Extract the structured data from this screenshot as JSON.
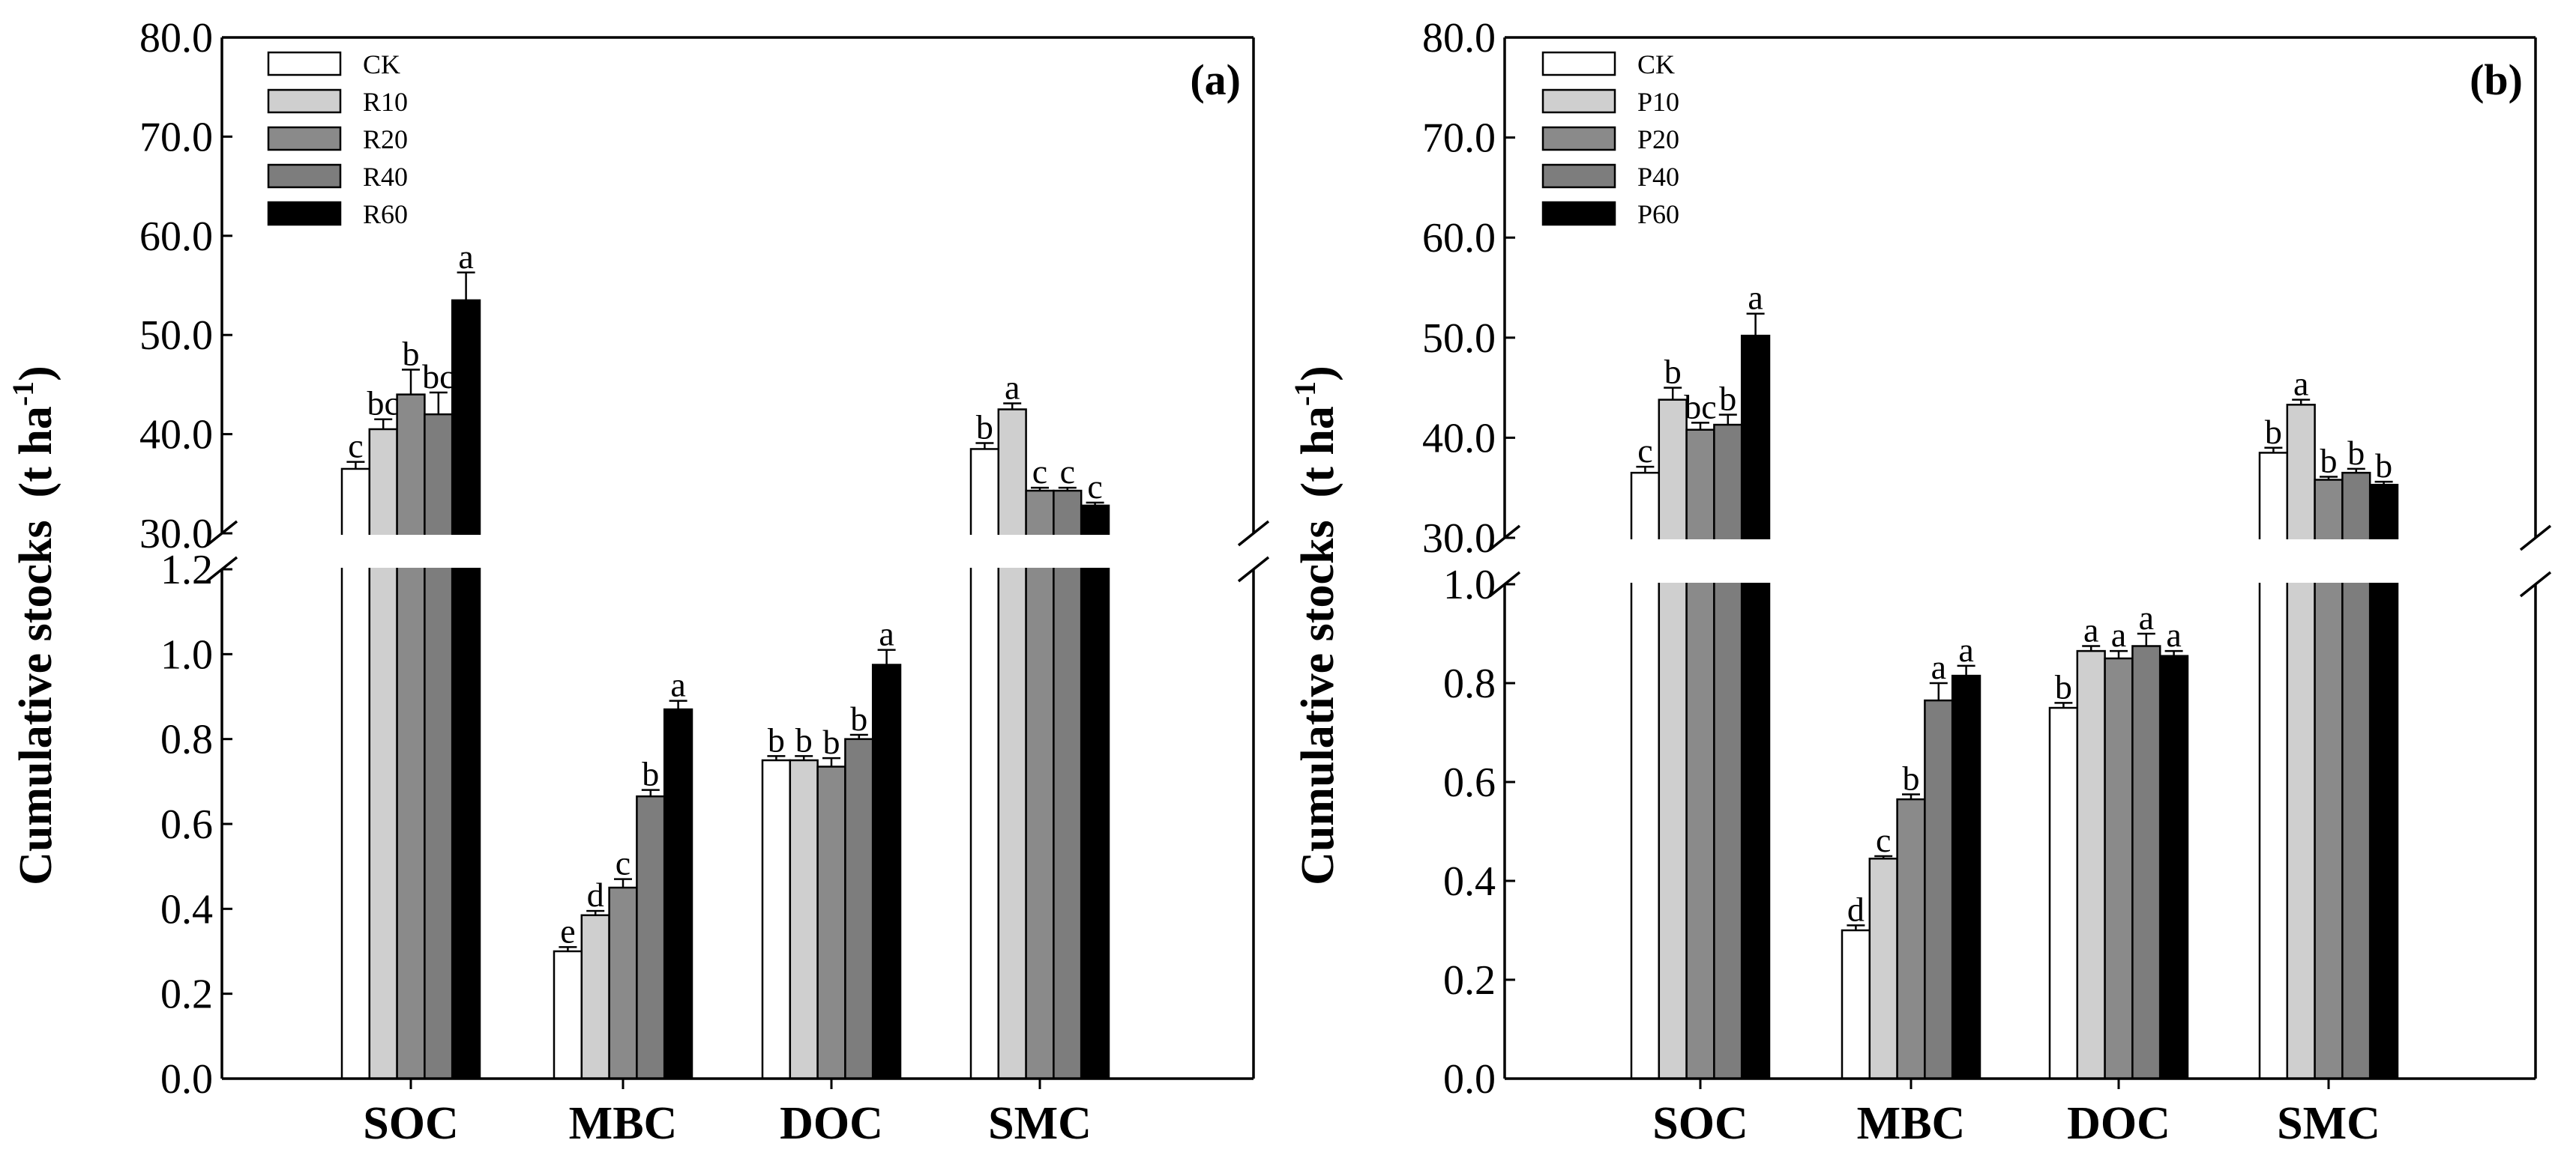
{
  "chart_data": [
    {
      "type": "bar",
      "panel_label": "(a)",
      "ylabel_main": "Cumulative stocks",
      "ylabel_unit_prefix": "(t ha",
      "ylabel_unit_sup": "-1",
      "ylabel_unit_suffix": ")",
      "categories": [
        "SOC",
        "MBC",
        "DOC",
        "SMC"
      ],
      "upper_ylim": [
        30,
        80
      ],
      "upper_ticks": [
        "30.0",
        "40.0",
        "50.0",
        "60.0",
        "70.0",
        "80.0"
      ],
      "lower_ylim": [
        0,
        1.2
      ],
      "lower_ticks": [
        "0.0",
        "0.2",
        "0.4",
        "0.6",
        "0.8",
        "1.0",
        "1.2"
      ],
      "legend_position": "top-left",
      "series": [
        {
          "name": "CK",
          "color": "#ffffff",
          "values": [
            36.5,
            0.3,
            0.75,
            38.5
          ],
          "errors": [
            0.7,
            0.01,
            0.01,
            0.6
          ],
          "letters": [
            "c",
            "e",
            "b",
            "b"
          ]
        },
        {
          "name": "R10",
          "color": "#cfcfcf",
          "values": [
            40.5,
            0.385,
            0.75,
            42.5
          ],
          "errors": [
            1.0,
            0.01,
            0.01,
            0.6
          ],
          "letters": [
            "bc",
            "d",
            "b",
            "a"
          ]
        },
        {
          "name": "R20",
          "color": "#8a8a8a",
          "values": [
            44.0,
            0.45,
            0.735,
            34.3
          ],
          "errors": [
            2.5,
            0.02,
            0.02,
            0.3
          ],
          "letters": [
            "b",
            "c",
            "b",
            "c"
          ]
        },
        {
          "name": "R40",
          "color": "#7d7d7d",
          "values": [
            42.0,
            0.665,
            0.8,
            34.3
          ],
          "errors": [
            2.2,
            0.015,
            0.01,
            0.3
          ],
          "letters": [
            "bc",
            "b",
            "b",
            "c"
          ]
        },
        {
          "name": "R60",
          "color": "#000000",
          "values": [
            53.5,
            0.87,
            0.975,
            32.8
          ],
          "errors": [
            2.8,
            0.02,
            0.035,
            0.3
          ],
          "letters": [
            "a",
            "a",
            "a",
            "c"
          ]
        }
      ]
    },
    {
      "type": "bar",
      "panel_label": "(b)",
      "ylabel_main": "Cumulative stocks",
      "ylabel_unit_prefix": "(t ha",
      "ylabel_unit_sup": "-1",
      "ylabel_unit_suffix": ")",
      "categories": [
        "SOC",
        "MBC",
        "DOC",
        "SMC"
      ],
      "upper_ylim": [
        30,
        80
      ],
      "upper_ticks": [
        "30.0",
        "40.0",
        "50.0",
        "60.0",
        "70.0",
        "80.0"
      ],
      "lower_ylim": [
        0,
        1.0
      ],
      "lower_ticks": [
        "0.0",
        "0.2",
        "0.4",
        "0.6",
        "0.8",
        "1.0"
      ],
      "legend_position": "top-left",
      "series": [
        {
          "name": "CK",
          "color": "#ffffff",
          "values": [
            36.5,
            0.3,
            0.75,
            38.5
          ],
          "errors": [
            0.6,
            0.01,
            0.01,
            0.5
          ],
          "letters": [
            "c",
            "d",
            "b",
            "b"
          ]
        },
        {
          "name": "P10",
          "color": "#cfcfcf",
          "values": [
            43.8,
            0.445,
            0.865,
            43.3
          ],
          "errors": [
            1.2,
            0.005,
            0.01,
            0.5
          ],
          "letters": [
            "b",
            "c",
            "a",
            "a"
          ]
        },
        {
          "name": "P20",
          "color": "#8a8a8a",
          "values": [
            40.8,
            0.565,
            0.85,
            35.8
          ],
          "errors": [
            0.7,
            0.01,
            0.015,
            0.3
          ],
          "letters": [
            "bc",
            "b",
            "a",
            "b"
          ]
        },
        {
          "name": "P40",
          "color": "#7d7d7d",
          "values": [
            41.3,
            0.765,
            0.875,
            36.5
          ],
          "errors": [
            1.0,
            0.035,
            0.025,
            0.4
          ],
          "letters": [
            "b",
            "a",
            "a",
            "b"
          ]
        },
        {
          "name": "P60",
          "color": "#000000",
          "values": [
            50.2,
            0.815,
            0.855,
            35.3
          ],
          "errors": [
            2.2,
            0.02,
            0.01,
            0.3
          ],
          "letters": [
            "a",
            "a",
            "a",
            "b"
          ]
        }
      ]
    }
  ]
}
